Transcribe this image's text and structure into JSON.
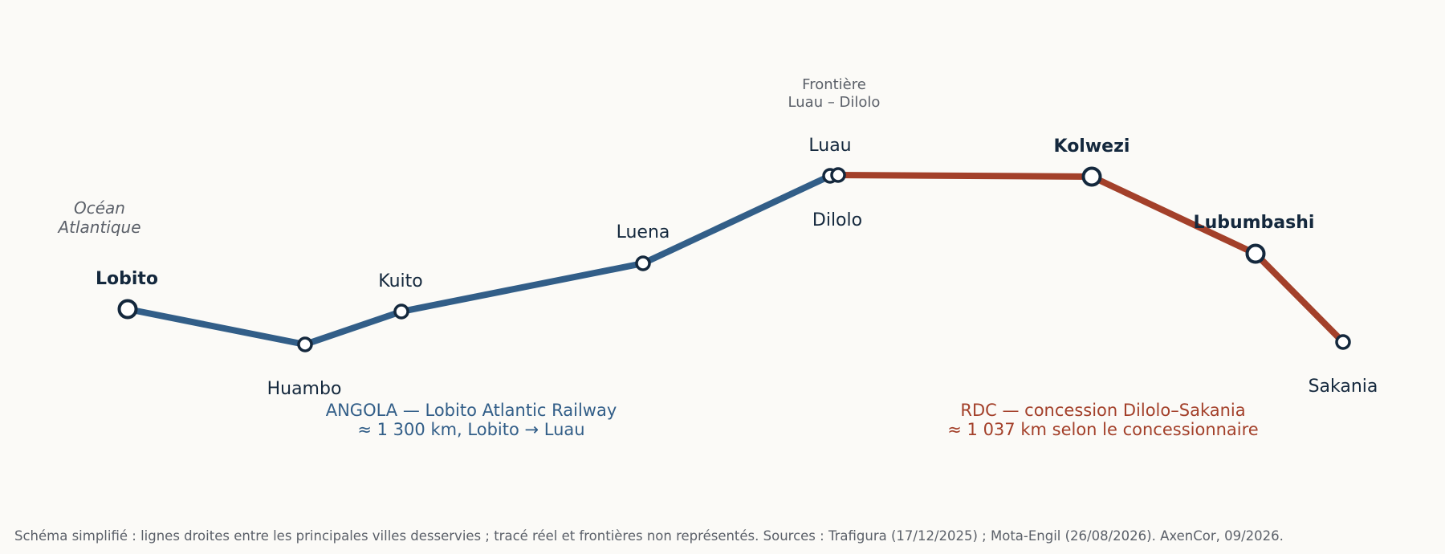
{
  "colors": {
    "background": "#fbfaf7",
    "angola_line": "#325e88",
    "rdc_line": "#a3402a",
    "station_stroke": "#14283d",
    "station_fill": "#ffffff",
    "label_dark": "#14283d",
    "annotation_grey": "#5b6069"
  },
  "ocean_label": {
    "line1": "Océan",
    "line2": "Atlantique"
  },
  "border_label": {
    "line1": "Frontière",
    "line2": "Luau – Dilolo"
  },
  "stations": {
    "lobito": "Lobito",
    "huambo": "Huambo",
    "kuito": "Kuito",
    "luena": "Luena",
    "luau": "Luau",
    "dilolo": "Dilolo",
    "kolwezi": "Kolwezi",
    "lubumbashi": "Lubumbashi",
    "sakania": "Sakania"
  },
  "angola_segment": {
    "line1": "ANGOLA — Lobito Atlantic Railway",
    "line2": "≈ 1 300 km, Lobito → Luau"
  },
  "rdc_segment": {
    "line1": "RDC — concession Dilolo–Sakania",
    "line2": "≈ 1 037 km selon le concessionnaire"
  },
  "footnote": "Schéma simplifié : lignes droites entre les principales villes desservies ; tracé réel et frontières non représentés. Sources : Trafigura (17/12/2025) ; Mota-Engil (26/08/2026). AxenCor, 09/2026."
}
